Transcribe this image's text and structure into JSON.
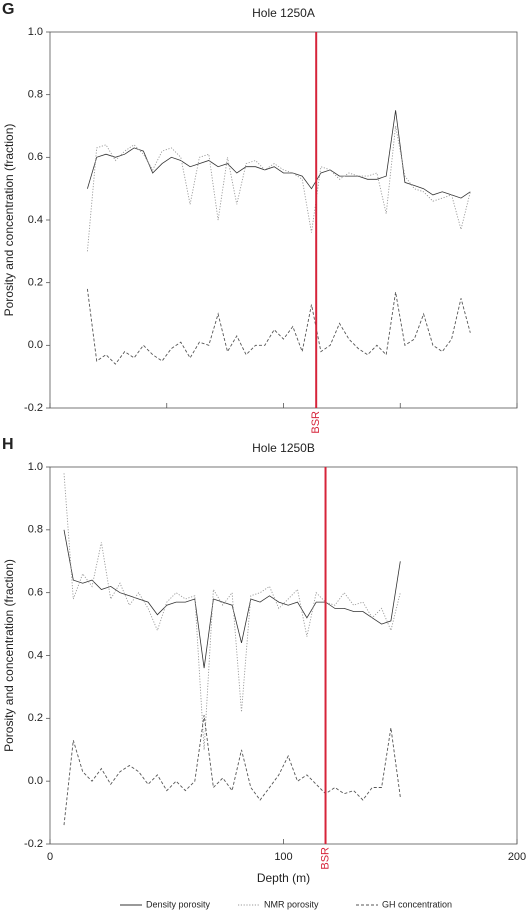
{
  "chart_data": [
    {
      "type": "line",
      "panel": "G",
      "title": "Hole 1250A",
      "ylabel": "Porosity and concentration (fraction)",
      "xlim": [
        0,
        200
      ],
      "xticks": [
        0,
        50,
        100,
        150,
        200
      ],
      "show_xtick_labels": false,
      "ylim": [
        -0.2,
        1
      ],
      "yticks": [
        {
          "value": 1,
          "label": "1.0"
        },
        0.8,
        0.6,
        0.4,
        0.2,
        {
          "value": 0,
          "label": "0.0"
        },
        -0.2
      ],
      "x": [
        16,
        20,
        24,
        28,
        32,
        36,
        40,
        44,
        48,
        52,
        56,
        60,
        64,
        68,
        72,
        76,
        80,
        84,
        88,
        92,
        96,
        100,
        104,
        108,
        112,
        116,
        120,
        124,
        128,
        132,
        136,
        140,
        144,
        148,
        152,
        156,
        160,
        164,
        168,
        172,
        176,
        180
      ],
      "series": [
        {
          "color": "#333333",
          "dash": "solid",
          "values": [
            0.5,
            0.6,
            0.61,
            0.6,
            0.61,
            0.63,
            0.62,
            0.55,
            0.58,
            0.6,
            0.59,
            0.57,
            0.58,
            0.59,
            0.57,
            0.58,
            0.55,
            0.57,
            0.57,
            0.56,
            0.57,
            0.55,
            0.55,
            0.54,
            0.5,
            0.55,
            0.56,
            0.54,
            0.54,
            0.54,
            0.53,
            0.53,
            0.54,
            0.75,
            0.52,
            0.51,
            0.5,
            0.48,
            0.49,
            0.48,
            0.47,
            0.49
          ]
        },
        {
          "color": "#999999",
          "dash": "dotted",
          "values": [
            0.3,
            0.63,
            0.64,
            0.59,
            0.62,
            0.64,
            0.61,
            0.56,
            0.62,
            0.63,
            0.6,
            0.45,
            0.6,
            0.61,
            0.4,
            0.6,
            0.45,
            0.58,
            0.59,
            0.56,
            0.58,
            0.56,
            0.55,
            0.53,
            0.36,
            0.57,
            0.56,
            0.53,
            0.55,
            0.54,
            0.54,
            0.55,
            0.42,
            0.7,
            0.54,
            0.5,
            0.49,
            0.46,
            0.47,
            0.48,
            0.37,
            0.49
          ]
        },
        {
          "color": "#555555",
          "dash": "dashed",
          "values": [
            0.18,
            -0.05,
            -0.03,
            -0.06,
            -0.02,
            -0.04,
            0.0,
            -0.03,
            -0.05,
            -0.01,
            0.01,
            -0.04,
            0.01,
            0.0,
            0.1,
            -0.02,
            0.03,
            -0.03,
            0.0,
            0.0,
            0.05,
            0.02,
            0.06,
            -0.02,
            0.13,
            -0.02,
            0.0,
            0.07,
            0.02,
            -0.01,
            -0.03,
            0.0,
            -0.03,
            0.17,
            0.0,
            0.02,
            0.1,
            0.0,
            -0.02,
            0.02,
            0.15,
            0.04
          ]
        }
      ],
      "annotations": [
        {
          "text": "BSR",
          "x": 114,
          "color": "#d6243a"
        }
      ]
    },
    {
      "type": "line",
      "panel": "H",
      "title": "Hole 1250B",
      "ylabel": "Porosity and concentration (fraction)",
      "xlabel": "Depth (m)",
      "xlim": [
        0,
        200
      ],
      "xticks": [
        0,
        100,
        200
      ],
      "show_xtick_labels": true,
      "ylim": [
        -0.2,
        1
      ],
      "yticks": [
        {
          "value": 1,
          "label": "1.0"
        },
        0.8,
        0.6,
        0.4,
        0.2,
        {
          "value": 0,
          "label": "0.0"
        },
        -0.2
      ],
      "x": [
        6,
        10,
        14,
        18,
        22,
        26,
        30,
        34,
        38,
        42,
        46,
        50,
        54,
        58,
        62,
        66,
        70,
        74,
        78,
        82,
        86,
        90,
        94,
        98,
        102,
        106,
        110,
        114,
        118,
        122,
        126,
        130,
        134,
        138,
        142,
        146,
        150
      ],
      "series": [
        {
          "name": "Density porosity",
          "color": "#333333",
          "dash": "solid",
          "values": [
            0.8,
            0.64,
            0.63,
            0.64,
            0.61,
            0.62,
            0.6,
            0.59,
            0.58,
            0.57,
            0.53,
            0.56,
            0.57,
            0.57,
            0.58,
            0.36,
            0.58,
            0.57,
            0.56,
            0.44,
            0.58,
            0.57,
            0.59,
            0.57,
            0.56,
            0.57,
            0.52,
            0.57,
            0.57,
            0.55,
            0.55,
            0.54,
            0.54,
            0.52,
            0.5,
            0.51,
            0.7
          ]
        },
        {
          "name": "NMR porosity",
          "color": "#999999",
          "dash": "dotted",
          "values": [
            0.98,
            0.58,
            0.66,
            0.62,
            0.76,
            0.58,
            0.63,
            0.56,
            0.6,
            0.55,
            0.48,
            0.57,
            0.6,
            0.58,
            0.59,
            0.1,
            0.61,
            0.56,
            0.6,
            0.22,
            0.59,
            0.6,
            0.62,
            0.55,
            0.58,
            0.61,
            0.46,
            0.6,
            0.57,
            0.56,
            0.6,
            0.56,
            0.57,
            0.52,
            0.55,
            0.48,
            0.6
          ]
        },
        {
          "name": "GH concentration",
          "color": "#555555",
          "dash": "dashed",
          "values": [
            -0.14,
            0.13,
            0.03,
            0.0,
            0.04,
            -0.01,
            0.03,
            0.05,
            0.03,
            -0.01,
            0.02,
            -0.03,
            0.0,
            -0.03,
            0.0,
            0.21,
            -0.02,
            0.01,
            -0.03,
            0.1,
            -0.02,
            -0.06,
            -0.02,
            0.02,
            0.08,
            0.0,
            0.02,
            -0.01,
            -0.04,
            -0.02,
            -0.04,
            -0.03,
            -0.06,
            -0.02,
            -0.02,
            0.17,
            -0.05
          ]
        }
      ],
      "annotations": [
        {
          "text": "BSR",
          "x": 118,
          "color": "#d6243a"
        }
      ],
      "legend": "bottom"
    }
  ]
}
